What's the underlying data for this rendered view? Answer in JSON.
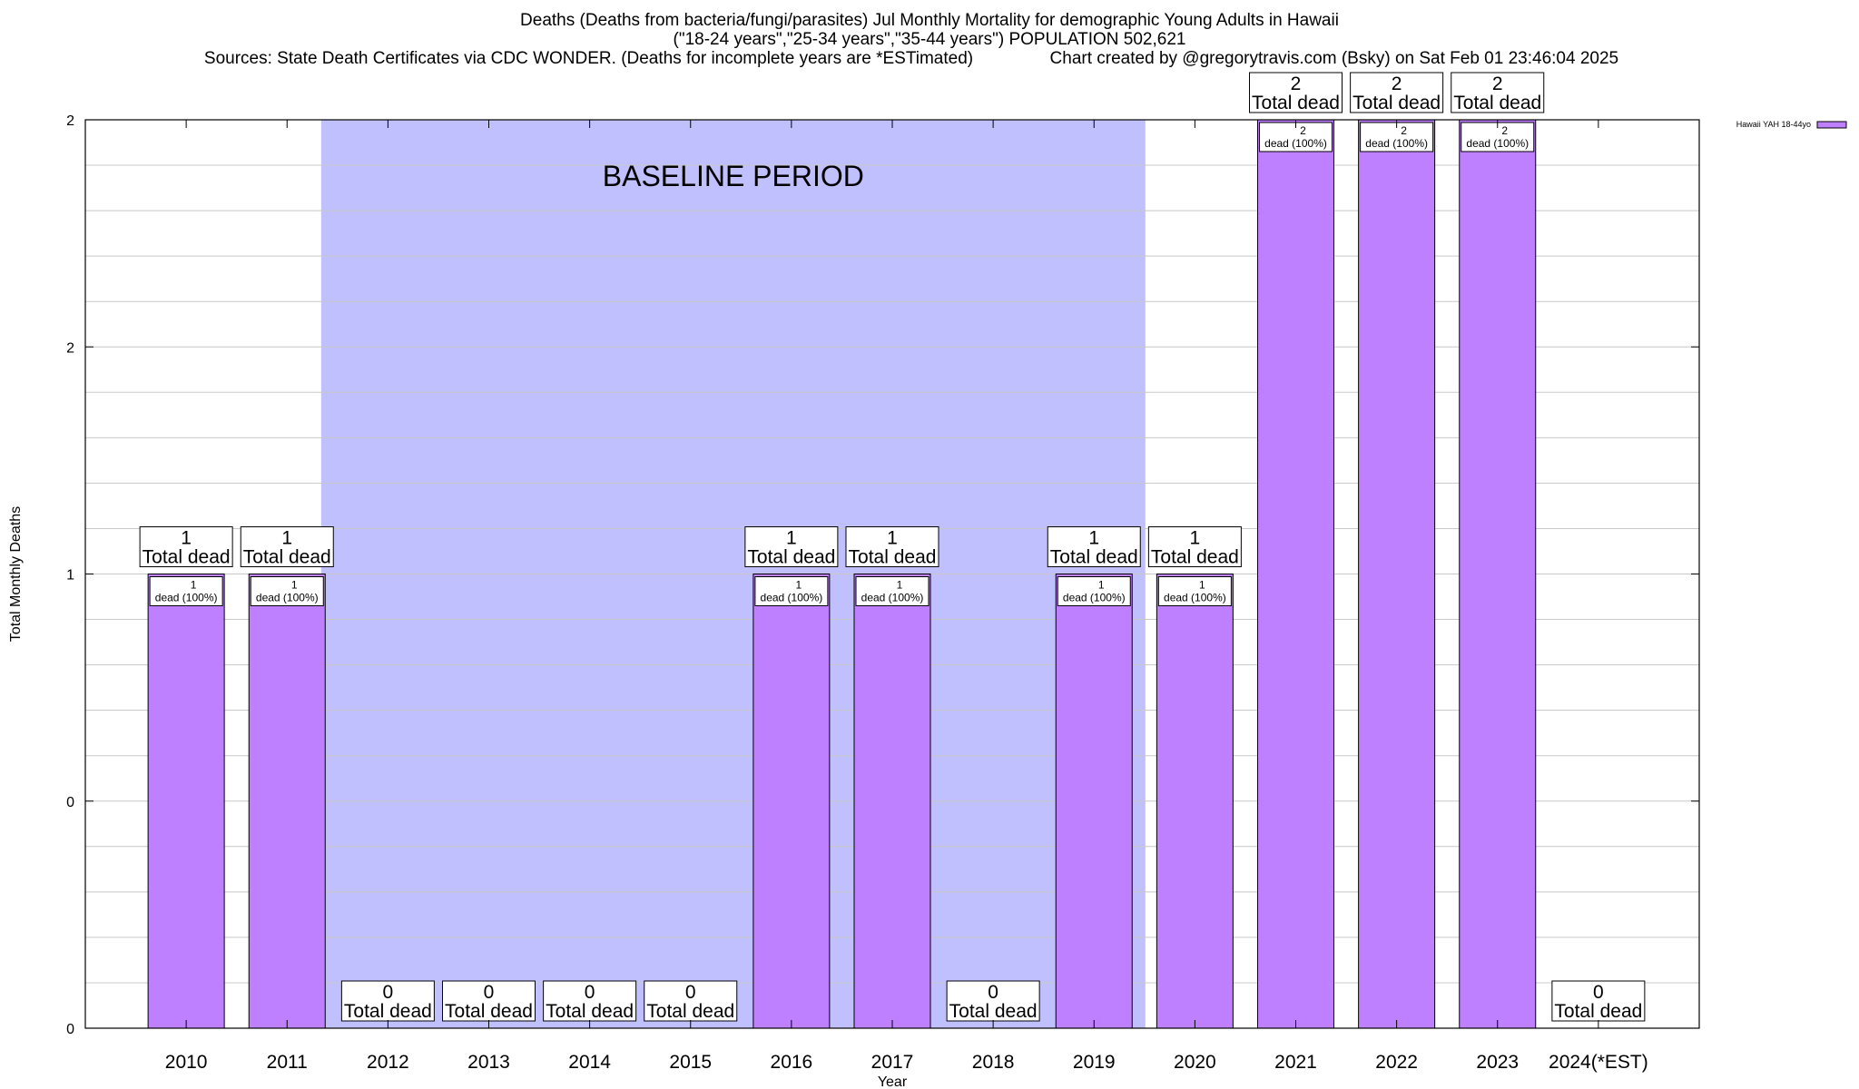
{
  "header": {
    "title_line1": "Deaths (Deaths from bacteria/fungi/parasites) Jul Monthly Mortality for demographic Young Adults in Hawaii",
    "title_line2": "(\"18-24 years\",\"25-34 years\",\"35-44 years\") POPULATION 502,621",
    "title_line3": "Sources: State Death Certificates via CDC WONDER. (Deaths for incomplete years are *ESTimated)                Chart created by @gregorytravis.com (Bsky) on Sat Feb 01 23:46:04 2025"
  },
  "chart_data": {
    "type": "bar",
    "xlabel": "Year",
    "ylabel": "Total Monthly Deaths",
    "categories": [
      "2010",
      "2011",
      "2012",
      "2013",
      "2014",
      "2015",
      "2016",
      "2017",
      "2018",
      "2019",
      "2020",
      "2021",
      "2022",
      "2023",
      "2024(*EST)"
    ],
    "series": [
      {
        "name": "Hawaii YAH 18-44yo",
        "color": "#bf80ff",
        "values": [
          1,
          1,
          0,
          0,
          0,
          0,
          1,
          1,
          0,
          1,
          1,
          2,
          2,
          2,
          0
        ]
      }
    ],
    "total_labels": [
      "1",
      "1",
      "0",
      "0",
      "0",
      "0",
      "1",
      "1",
      "0",
      "1",
      "1",
      "2",
      "2",
      "2",
      "0"
    ],
    "total_suffix": "Total dead",
    "inner_labels": [
      "1",
      "1",
      "",
      "",
      "",
      "",
      "1",
      "1",
      "",
      "1",
      "1",
      "2",
      "2",
      "2",
      ""
    ],
    "inner_suffix": "dead (100%)",
    "ylim": [
      0,
      2
    ],
    "yticks": [
      {
        "value": 0,
        "label": "0"
      },
      {
        "value": 0.5,
        "label": "0"
      },
      {
        "value": 1,
        "label": "1"
      },
      {
        "value": 1.5,
        "label": "2"
      },
      {
        "value": 2,
        "label": "2"
      }
    ],
    "grid": true,
    "baseline": {
      "label": "BASELINE PERIOD",
      "from": "2012",
      "to": "2019",
      "color": "#c0c0ff"
    },
    "legend": {
      "placement": "top-right outside",
      "label": "Hawaii YAH 18-44yo"
    }
  }
}
